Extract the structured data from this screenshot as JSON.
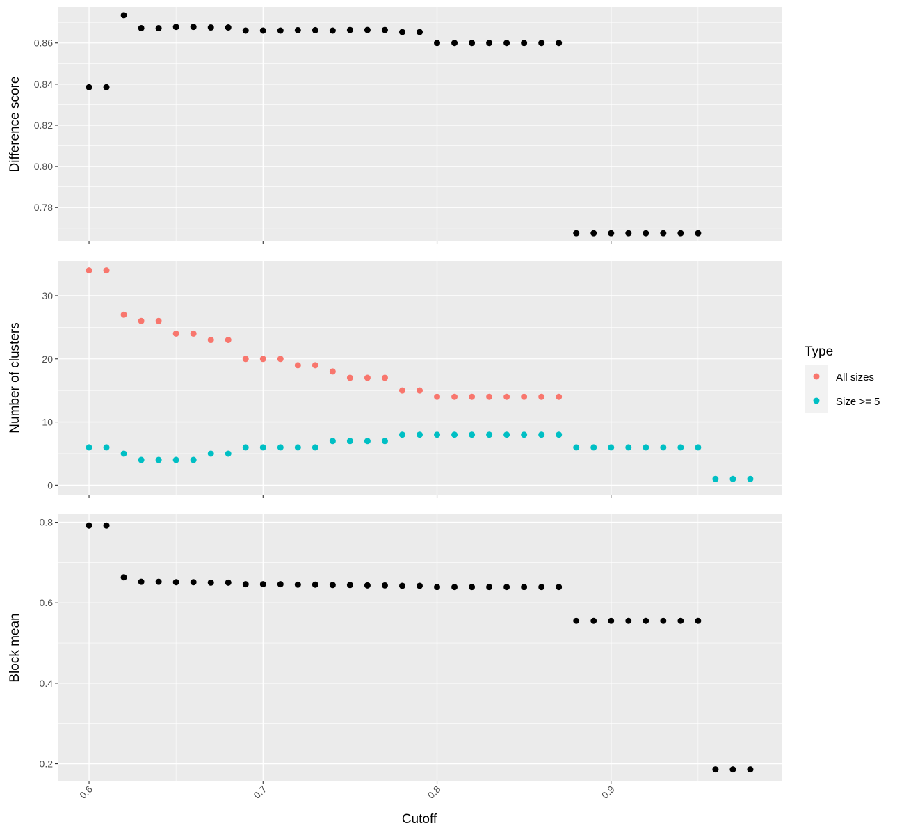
{
  "chart_data": {
    "type": "scatter",
    "facets": "vertical, shared x axis",
    "xlabel": "Cutoff",
    "xlim": [
      0.582,
      0.998
    ],
    "x_ticks": [
      0.6,
      0.7,
      0.8,
      0.9
    ],
    "x_tick_labels": [
      "0.6",
      "0.7",
      "0.8",
      "0.9"
    ],
    "grid": true,
    "colors": {
      "panel_bg": "#EBEBEB",
      "grid": "#FFFFFF",
      "points": "#000000",
      "all_sizes": "#F8766D",
      "size_ge_5": "#00BFC4"
    },
    "legend": {
      "title": "Type",
      "placement": "right",
      "entries": [
        {
          "label": "All sizes",
          "color": "#F8766D"
        },
        {
          "label": "Size >= 5",
          "color": "#00BFC4"
        }
      ]
    },
    "panels": [
      {
        "ylabel": "Difference score",
        "ylim": [
          0.7635,
          0.8775
        ],
        "y_ticks": [
          0.78,
          0.8,
          0.82,
          0.84,
          0.86
        ],
        "y_tick_labels": [
          "0.78",
          "0.80",
          "0.82",
          "0.84",
          "0.86"
        ],
        "series": [
          {
            "color": "#000000",
            "points": [
              [
                0.6,
                0.8385
              ],
              [
                0.61,
                0.8385
              ],
              [
                0.62,
                0.8735
              ],
              [
                0.63,
                0.8672
              ],
              [
                0.64,
                0.8672
              ],
              [
                0.65,
                0.8678
              ],
              [
                0.66,
                0.8678
              ],
              [
                0.67,
                0.8675
              ],
              [
                0.68,
                0.8675
              ],
              [
                0.69,
                0.866
              ],
              [
                0.7,
                0.866
              ],
              [
                0.71,
                0.866
              ],
              [
                0.72,
                0.8662
              ],
              [
                0.73,
                0.8662
              ],
              [
                0.74,
                0.866
              ],
              [
                0.75,
                0.8663
              ],
              [
                0.76,
                0.8663
              ],
              [
                0.77,
                0.8663
              ],
              [
                0.78,
                0.8653
              ],
              [
                0.79,
                0.8653
              ],
              [
                0.8,
                0.86
              ],
              [
                0.81,
                0.86
              ],
              [
                0.82,
                0.86
              ],
              [
                0.83,
                0.86
              ],
              [
                0.84,
                0.86
              ],
              [
                0.85,
                0.86
              ],
              [
                0.86,
                0.86
              ],
              [
                0.87,
                0.86
              ],
              [
                0.88,
                0.7675
              ],
              [
                0.89,
                0.7675
              ],
              [
                0.9,
                0.7675
              ],
              [
                0.91,
                0.7675
              ],
              [
                0.92,
                0.7675
              ],
              [
                0.93,
                0.7675
              ],
              [
                0.94,
                0.7675
              ],
              [
                0.95,
                0.7675
              ]
            ]
          }
        ]
      },
      {
        "ylabel": "Number of clusters",
        "ylim": [
          -1.5,
          35.5
        ],
        "y_ticks": [
          0,
          10,
          20,
          30
        ],
        "y_tick_labels": [
          "0",
          "10",
          "20",
          "30"
        ],
        "series": [
          {
            "name": "All sizes",
            "color": "#F8766D",
            "points": [
              [
                0.6,
                34
              ],
              [
                0.61,
                34
              ],
              [
                0.62,
                27
              ],
              [
                0.63,
                26
              ],
              [
                0.64,
                26
              ],
              [
                0.65,
                24
              ],
              [
                0.66,
                24
              ],
              [
                0.67,
                23
              ],
              [
                0.68,
                23
              ],
              [
                0.69,
                20
              ],
              [
                0.7,
                20
              ],
              [
                0.71,
                20
              ],
              [
                0.72,
                19
              ],
              [
                0.73,
                19
              ],
              [
                0.74,
                18
              ],
              [
                0.75,
                17
              ],
              [
                0.76,
                17
              ],
              [
                0.77,
                17
              ],
              [
                0.78,
                15
              ],
              [
                0.79,
                15
              ],
              [
                0.8,
                14
              ],
              [
                0.81,
                14
              ],
              [
                0.82,
                14
              ],
              [
                0.83,
                14
              ],
              [
                0.84,
                14
              ],
              [
                0.85,
                14
              ],
              [
                0.86,
                14
              ],
              [
                0.87,
                14
              ]
            ]
          },
          {
            "name": "Size >= 5",
            "color": "#00BFC4",
            "points": [
              [
                0.6,
                6
              ],
              [
                0.61,
                6
              ],
              [
                0.62,
                5
              ],
              [
                0.63,
                4
              ],
              [
                0.64,
                4
              ],
              [
                0.65,
                4
              ],
              [
                0.66,
                4
              ],
              [
                0.67,
                5
              ],
              [
                0.68,
                5
              ],
              [
                0.69,
                6
              ],
              [
                0.7,
                6
              ],
              [
                0.71,
                6
              ],
              [
                0.72,
                6
              ],
              [
                0.73,
                6
              ],
              [
                0.74,
                7
              ],
              [
                0.75,
                7
              ],
              [
                0.76,
                7
              ],
              [
                0.77,
                7
              ],
              [
                0.78,
                8
              ],
              [
                0.79,
                8
              ],
              [
                0.8,
                8
              ],
              [
                0.81,
                8
              ],
              [
                0.82,
                8
              ],
              [
                0.83,
                8
              ],
              [
                0.84,
                8
              ],
              [
                0.85,
                8
              ],
              [
                0.86,
                8
              ],
              [
                0.87,
                8
              ],
              [
                0.88,
                6
              ],
              [
                0.89,
                6
              ],
              [
                0.9,
                6
              ],
              [
                0.91,
                6
              ],
              [
                0.92,
                6
              ],
              [
                0.93,
                6
              ],
              [
                0.94,
                6
              ],
              [
                0.95,
                6
              ],
              [
                0.96,
                1
              ],
              [
                0.97,
                1
              ],
              [
                0.98,
                1
              ]
            ]
          }
        ]
      },
      {
        "ylabel": "Block mean",
        "ylim": [
          0.156,
          0.82
        ],
        "y_ticks": [
          0.2,
          0.4,
          0.6,
          0.8
        ],
        "y_tick_labels": [
          "0.2",
          "0.4",
          "0.6",
          "0.8"
        ],
        "series": [
          {
            "color": "#000000",
            "points": [
              [
                0.6,
                0.792
              ],
              [
                0.61,
                0.792
              ],
              [
                0.62,
                0.663
              ],
              [
                0.63,
                0.652
              ],
              [
                0.64,
                0.652
              ],
              [
                0.65,
                0.651
              ],
              [
                0.66,
                0.651
              ],
              [
                0.67,
                0.65
              ],
              [
                0.68,
                0.65
              ],
              [
                0.69,
                0.646
              ],
              [
                0.7,
                0.646
              ],
              [
                0.71,
                0.646
              ],
              [
                0.72,
                0.645
              ],
              [
                0.73,
                0.645
              ],
              [
                0.74,
                0.644
              ],
              [
                0.75,
                0.644
              ],
              [
                0.76,
                0.643
              ],
              [
                0.77,
                0.643
              ],
              [
                0.78,
                0.642
              ],
              [
                0.79,
                0.642
              ],
              [
                0.8,
                0.639
              ],
              [
                0.81,
                0.639
              ],
              [
                0.82,
                0.639
              ],
              [
                0.83,
                0.639
              ],
              [
                0.84,
                0.639
              ],
              [
                0.85,
                0.639
              ],
              [
                0.86,
                0.639
              ],
              [
                0.87,
                0.639
              ],
              [
                0.88,
                0.555
              ],
              [
                0.89,
                0.555
              ],
              [
                0.9,
                0.555
              ],
              [
                0.91,
                0.555
              ],
              [
                0.92,
                0.555
              ],
              [
                0.93,
                0.555
              ],
              [
                0.94,
                0.555
              ],
              [
                0.95,
                0.555
              ],
              [
                0.96,
                0.186
              ],
              [
                0.97,
                0.186
              ],
              [
                0.98,
                0.186
              ]
            ]
          }
        ]
      }
    ]
  }
}
